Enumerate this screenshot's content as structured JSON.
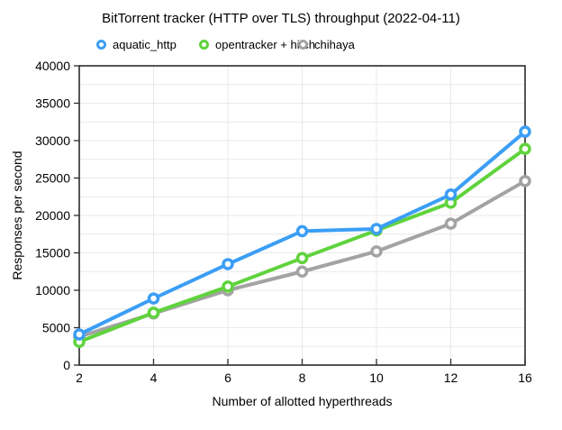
{
  "chart_data": {
    "type": "line",
    "title": "BitTorrent tracker (HTTP over TLS) throughput (2022-04-11)",
    "xlabel": "Number of allotted hyperthreads",
    "ylabel": "Responses per second",
    "categories": [
      2,
      4,
      6,
      8,
      10,
      12,
      16
    ],
    "x_tick_labels": [
      "2",
      "4",
      "6",
      "8",
      "10",
      "12",
      "16"
    ],
    "ylim": [
      0,
      40000
    ],
    "y_major_step": 5000,
    "y_minor_step": 2500,
    "grid": true,
    "legend_position": "top",
    "marker": "open-circle",
    "series": [
      {
        "name": "aquatic_http",
        "color": "#3B9EF5",
        "values": [
          4100,
          8900,
          13500,
          17900,
          18200,
          22800,
          31200
        ]
      },
      {
        "name": "opentracker + hitch",
        "color": "#5FD33C",
        "values": [
          3100,
          7000,
          10500,
          14300,
          18000,
          21700,
          28900
        ]
      },
      {
        "name": "chihaya",
        "color": "#A3A3A3",
        "values": [
          3800,
          6900,
          10000,
          12500,
          15200,
          18900,
          24600
        ]
      }
    ],
    "draw_order": [
      2,
      1,
      0
    ],
    "frame_color": "#2b2b2b",
    "gridline_color": "#E9E9E9"
  }
}
